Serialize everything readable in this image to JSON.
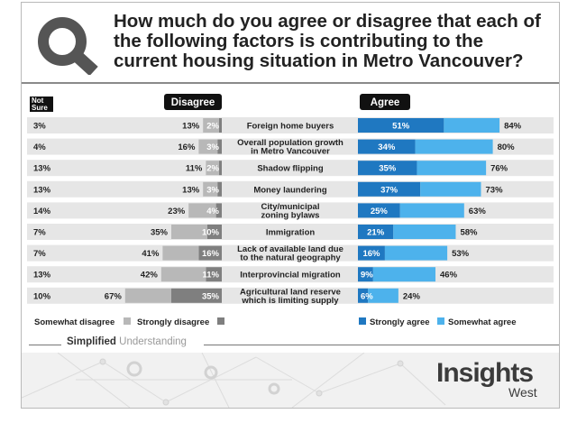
{
  "title": "How much do you agree or disagree that each of the following factors is contributing to the current housing situation in Metro Vancouver?",
  "headers": {
    "not_sure": "Not Sure",
    "disagree": "Disagree",
    "agree": "Agree"
  },
  "colors": {
    "strongly_agree": "#1f78c1",
    "somewhat_agree": "#4db2ec",
    "strongly_disagree": "#7f7f7f",
    "somewhat_disagree": "#b8b8b8",
    "row_band": "#e6e6e6",
    "header_pill": "#111111"
  },
  "chart_data": {
    "type": "bar",
    "orientation": "diverging-horizontal-stacked",
    "categories": [
      "Foreign home buyers",
      "Overall population growth in Metro Vancouver",
      "Shadow flipping",
      "Money laundering",
      "City/municipal zoning bylaws",
      "Immigration",
      "Lack of available land due to the natural geography",
      "Interprovincial migration",
      "Agricultural land reserve which is limiting supply"
    ],
    "category_lines": [
      [
        "Foreign home buyers"
      ],
      [
        "Overall population growth",
        "in Metro Vancouver"
      ],
      [
        "Shadow flipping"
      ],
      [
        "Money laundering"
      ],
      [
        "City/municipal",
        "zoning bylaws"
      ],
      [
        "Immigration"
      ],
      [
        "Lack of available land due",
        "to the natural geography"
      ],
      [
        "Interprovincial migration"
      ],
      [
        "Agricultural land reserve",
        "which is limiting supply"
      ]
    ],
    "not_sure": [
      "3%",
      "4%",
      "13%",
      "13%",
      "14%",
      "7%",
      "7%",
      "13%",
      "10%"
    ],
    "disagree_total": [
      "13%",
      "16%",
      "11%",
      "13%",
      "23%",
      "35%",
      "41%",
      "42%",
      "67%"
    ],
    "agree_total": [
      "84%",
      "80%",
      "76%",
      "73%",
      "63%",
      "58%",
      "53%",
      "46%",
      "24%"
    ],
    "series": [
      {
        "name": "Strongly agree",
        "side": "agree",
        "values": [
          51,
          34,
          35,
          37,
          25,
          21,
          16,
          9,
          6
        ]
      },
      {
        "name": "Somewhat agree",
        "side": "agree",
        "values": [
          33,
          46,
          41,
          36,
          38,
          37,
          37,
          37,
          18
        ]
      },
      {
        "name": "Strongly disagree",
        "side": "disagree",
        "values": [
          2,
          3,
          2,
          3,
          4,
          10,
          16,
          11,
          35
        ]
      },
      {
        "name": "Somewhat disagree",
        "side": "disagree",
        "values": [
          11,
          13,
          9,
          10,
          19,
          25,
          25,
          31,
          32
        ]
      }
    ],
    "strongly_labels_agree": [
      "51%",
      "34%",
      "35%",
      "37%",
      "25%",
      "21%",
      "16%",
      "9%",
      "6%"
    ],
    "strongly_labels_disagree": [
      "2%",
      "3%",
      "2%",
      "3%",
      "4%",
      "10%",
      "16%",
      "11%",
      "35%"
    ],
    "legend": {
      "left": [
        {
          "label": "Somewhat disagree",
          "series": "Somewhat disagree"
        },
        {
          "label": "Strongly disagree",
          "series": "Strongly disagree"
        }
      ],
      "right": [
        {
          "label": "Strongly agree",
          "series": "Strongly agree"
        },
        {
          "label": "Somewhat agree",
          "series": "Somewhat agree"
        }
      ]
    }
  },
  "footer": {
    "brand_a": "Simplified",
    "brand_b": "Understanding",
    "logo_main": "Insights",
    "logo_sub": "West"
  }
}
